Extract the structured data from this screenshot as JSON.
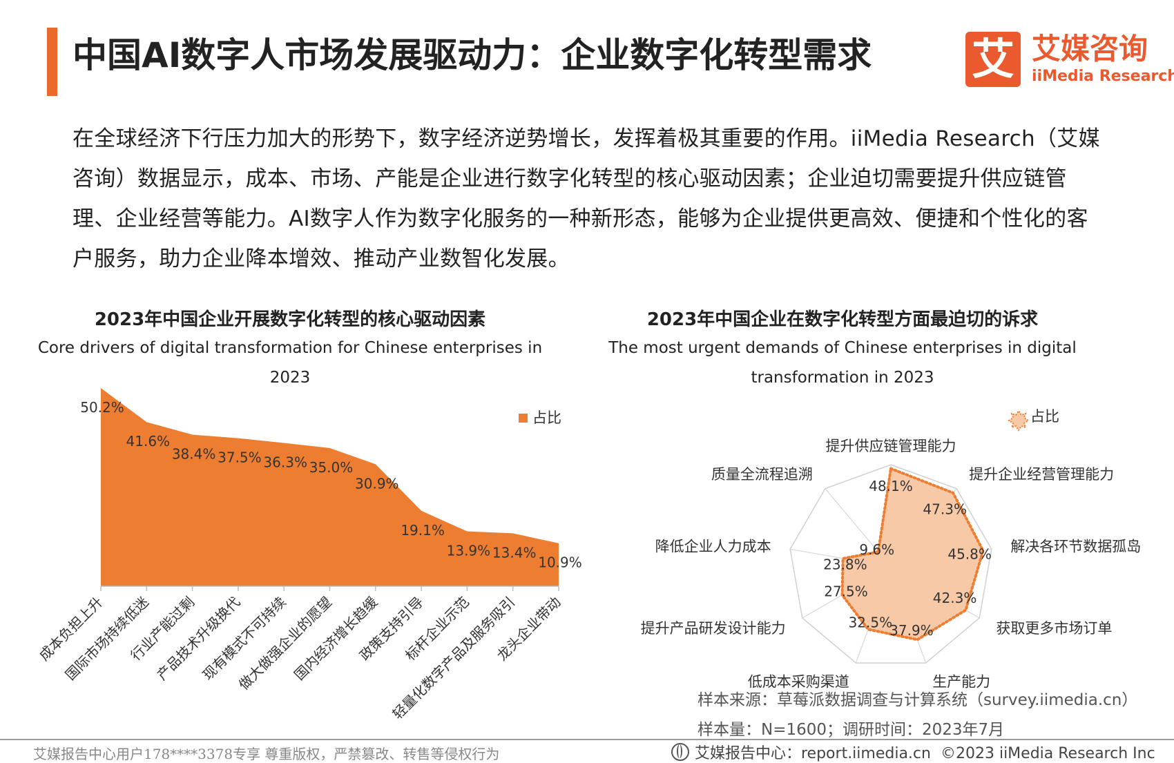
{
  "header": {
    "title": "中国AI数字人市场发展驱动力：企业数字化转型需求",
    "logo_char": "艾",
    "logo_cn": "艾媒咨询",
    "logo_en": "iiMedia Research"
  },
  "intro_text": "在全球经济下行压力加大的形势下，数字经济逆势增长，发挥着极其重要的作用。iiMedia Research（艾媒咨询）数据显示，成本、市场、产能是企业进行数字化转型的核心驱动因素；企业迫切需要提升供应链管理、企业经营等能力。AI数字人作为数字化服务的一种新形态，能够为企业提供更高效、便捷和个性化的客户服务，助力企业降本增效、推动产业数智化发展。",
  "chart_data": [
    {
      "type": "area",
      "title": "2023年中国企业开展数字化转型的核心驱动因素",
      "subtitle": "Core drivers of digital transformation for Chinese enterprises in 2023",
      "categories": [
        "成本负担上升",
        "国际市场持续低迷",
        "行业产能过剩",
        "产品技术升级换代",
        "现有模式不可持续",
        "做大做强企业的愿望",
        "国内经济增长趋缓",
        "政策支持引导",
        "标杆企业示范",
        "轻量化数字产品及服务吸引",
        "龙头企业带动"
      ],
      "series": [
        {
          "name": "占比",
          "values": [
            50.2,
            41.6,
            38.4,
            37.5,
            36.3,
            35.0,
            30.9,
            19.1,
            13.9,
            13.4,
            10.9
          ]
        }
      ],
      "value_labels": [
        "50.2%",
        "41.6%",
        "38.4%",
        "37.5%",
        "36.3%",
        "35.0%",
        "30.9%",
        "19.1%",
        "13.9%",
        "13.4%",
        "10.9%"
      ],
      "ylim": [
        0,
        50.2
      ],
      "legend_position": "top-right",
      "color": "#ed7d31"
    },
    {
      "type": "radar",
      "title": "2023年中国企业在数字化转型方面最迫切的诉求",
      "subtitle": "The most urgent demands of Chinese enterprises in digital transformation in 2023",
      "categories": [
        "提升供应链管理能力",
        "提升企业经营管理能力",
        "解决各环节数据孤岛",
        "获取更多市场订单",
        "生产能力",
        "低成本采购渠道",
        "提升产品研发设计能力",
        "降低企业人力成本",
        "质量全流程追溯"
      ],
      "series": [
        {
          "name": "占比",
          "values": [
            48.1,
            47.3,
            45.8,
            42.3,
            37.9,
            32.5,
            27.5,
            23.8,
            9.6
          ]
        }
      ],
      "value_labels": [
        "48.1%",
        "47.3%",
        "45.8%",
        "42.3%",
        "37.9%",
        "32.5%",
        "27.5%",
        "23.8%",
        "9.6%"
      ],
      "rlim": [
        0,
        50
      ],
      "legend_position": "top-right",
      "color": "#ed7d31"
    }
  ],
  "source": {
    "line1": "样本来源：草莓派数据调查与计算系统（survey.iimedia.cn）",
    "line2": "样本量：N=1600；调研时间：2023年7月"
  },
  "footer": {
    "watermark": "艾媒报告中心用户178****3378专享 尊重版权，严禁篡改、转售等侵权行为",
    "site": "艾媒报告中心：report.iimedia.cn",
    "copyright": "©2023  iiMedia Research  Inc"
  }
}
